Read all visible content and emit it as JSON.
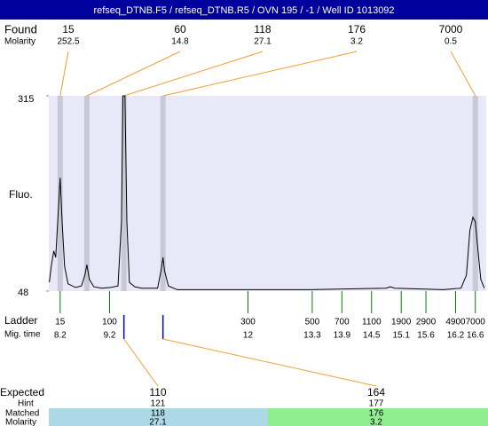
{
  "chart_data": {
    "type": "line",
    "title": "refseq_DTNB.F5 / refseq_DTNB.R5 / OVN 195 / -1 / Well ID 1013092",
    "y_label": "Fluo.",
    "color": "#000000",
    "x": [
      7.98,
      8.02,
      8.07,
      8.11,
      8.16,
      8.2,
      8.24,
      8.29,
      8.36,
      8.51,
      8.63,
      8.7,
      8.74,
      8.79,
      8.88,
      9.04,
      9.22,
      9.37,
      9.44,
      9.47,
      9.51,
      9.55,
      9.6,
      9.71,
      9.85,
      10.17,
      10.24,
      10.28,
      10.31,
      10.39,
      10.57,
      11.65,
      13.26,
      14.79,
      14.88,
      14.97,
      15.95,
      16.31,
      16.42,
      16.49,
      16.55,
      16.6,
      16.65,
      16.71,
      16.78
    ],
    "values": [
      60,
      82,
      103,
      94,
      155,
      203,
      143,
      82,
      58,
      53,
      55,
      70,
      84,
      64,
      54,
      52,
      53,
      55,
      143,
      315,
      315,
      143,
      60,
      54,
      52,
      52,
      76,
      94,
      76,
      55,
      50,
      50,
      50,
      52,
      54,
      52,
      50,
      52,
      70,
      131,
      149,
      143,
      106,
      64,
      52
    ],
    "xlim": [
      7.97,
      16.82
    ],
    "ylim": [
      48,
      315
    ],
    "yticks": [
      48,
      315
    ],
    "found": {
      "label": "Found",
      "molarity_label": "Molarity",
      "sizes": [
        15,
        60,
        118,
        176,
        7000
      ],
      "molarity": [
        252.5,
        14.8,
        27.1,
        3.2,
        0.5
      ],
      "times": [
        8.2,
        8.74,
        9.49,
        10.28,
        16.6
      ]
    },
    "ladder": {
      "label": "Ladder",
      "time_label": "Mig. time",
      "sizes": [
        15,
        100,
        300,
        500,
        700,
        1100,
        1900,
        2900,
        4900,
        7000
      ],
      "times": [
        8.2,
        9.2,
        12,
        13.3,
        13.9,
        14.5,
        15.1,
        15.6,
        16.2,
        16.6
      ]
    },
    "expected": {
      "label": "Expected",
      "hint_label": "Hint",
      "matched_label": "Matched",
      "molarity_label": "Molarity",
      "expected": [
        110,
        164
      ],
      "hint": [
        121,
        177
      ],
      "matched": [
        118,
        176
      ],
      "molarity": [
        27.1,
        3.2
      ]
    }
  }
}
